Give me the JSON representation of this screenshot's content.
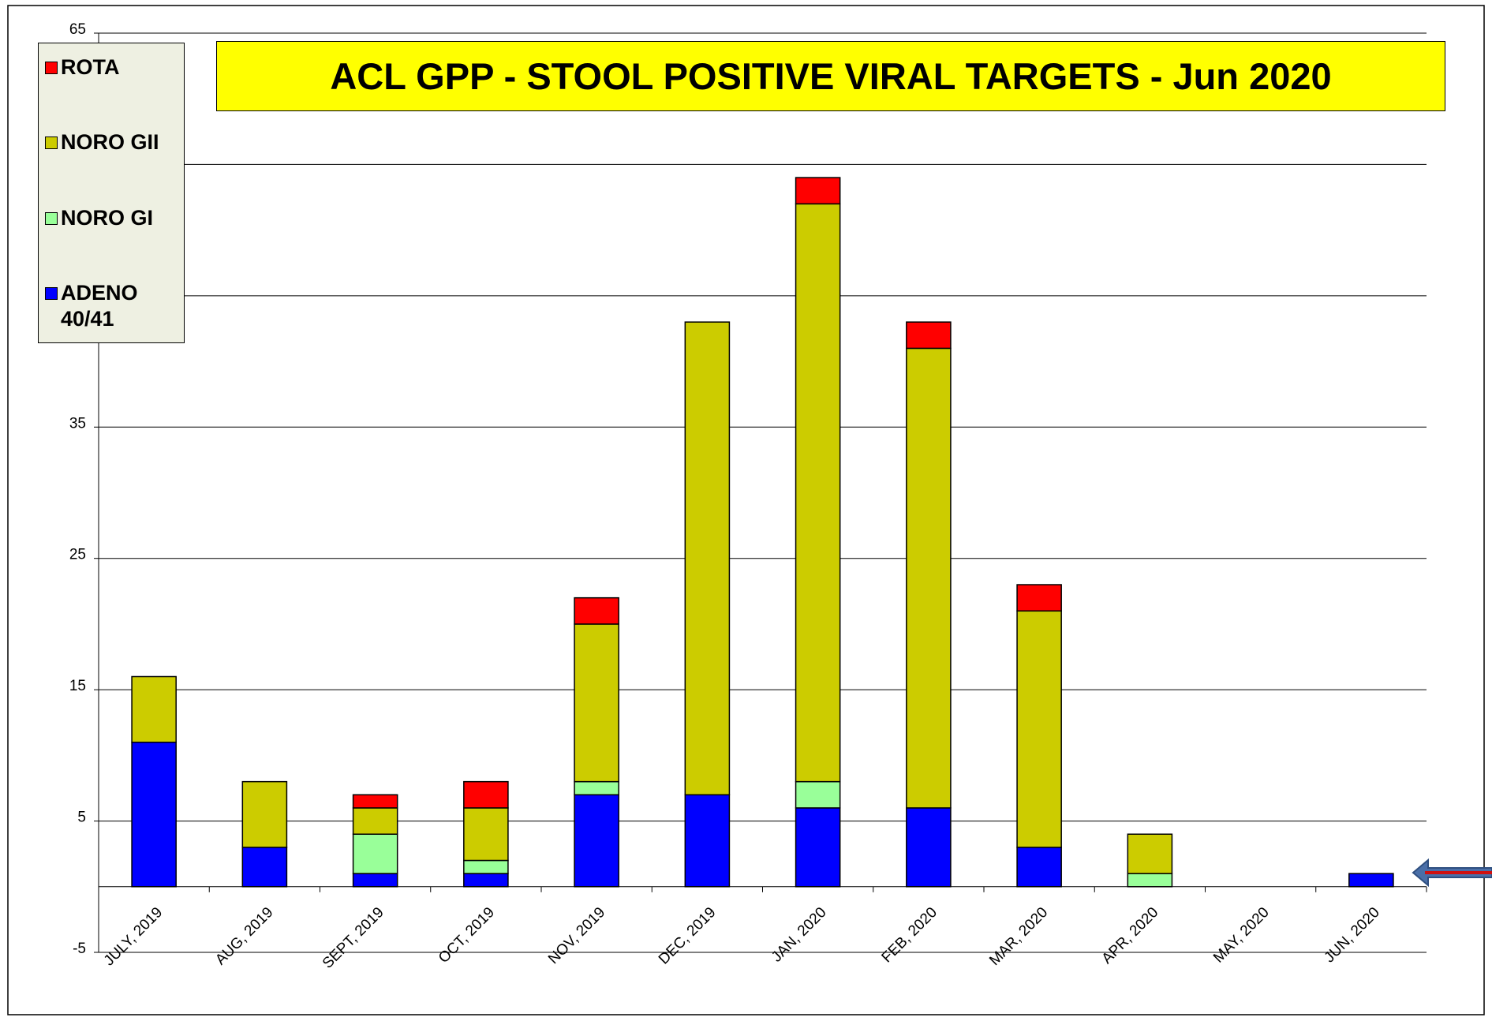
{
  "chart_data": {
    "type": "stacked-bar",
    "title": "ACL GPP - STOOL POSITIVE VIRAL TARGETS - Jun 2020",
    "categories": [
      "JULY, 2019",
      "AUG, 2019",
      "SEPT, 2019",
      "OCT, 2019",
      "NOV, 2019",
      "DEC, 2019",
      "JAN, 2020",
      "FEB, 2020",
      "MAR, 2020",
      "APR, 2020",
      "MAY, 2020",
      "JUN, 2020"
    ],
    "series": [
      {
        "name": "ADENO 40/41",
        "color": "#0000ff",
        "values": [
          11,
          3,
          1,
          1,
          7,
          7,
          6,
          6,
          3,
          0,
          0,
          1
        ]
      },
      {
        "name": "NORO GI",
        "color": "#99ff99",
        "values": [
          0,
          0,
          3,
          1,
          1,
          0,
          2,
          0,
          0,
          1,
          0,
          0
        ]
      },
      {
        "name": "NORO GII",
        "color": "#cccc00",
        "values": [
          5,
          5,
          2,
          4,
          12,
          36,
          44,
          35,
          18,
          3,
          0,
          0
        ]
      },
      {
        "name": "ROTA",
        "color": "#ff0000",
        "values": [
          0,
          0,
          1,
          2,
          2,
          0,
          2,
          2,
          2,
          0,
          0,
          0
        ]
      }
    ],
    "ylim": [
      -5,
      65
    ],
    "yticks": [
      -5,
      5,
      15,
      25,
      35,
      45,
      55,
      65
    ],
    "grid": true,
    "legend": "top-left"
  }
}
